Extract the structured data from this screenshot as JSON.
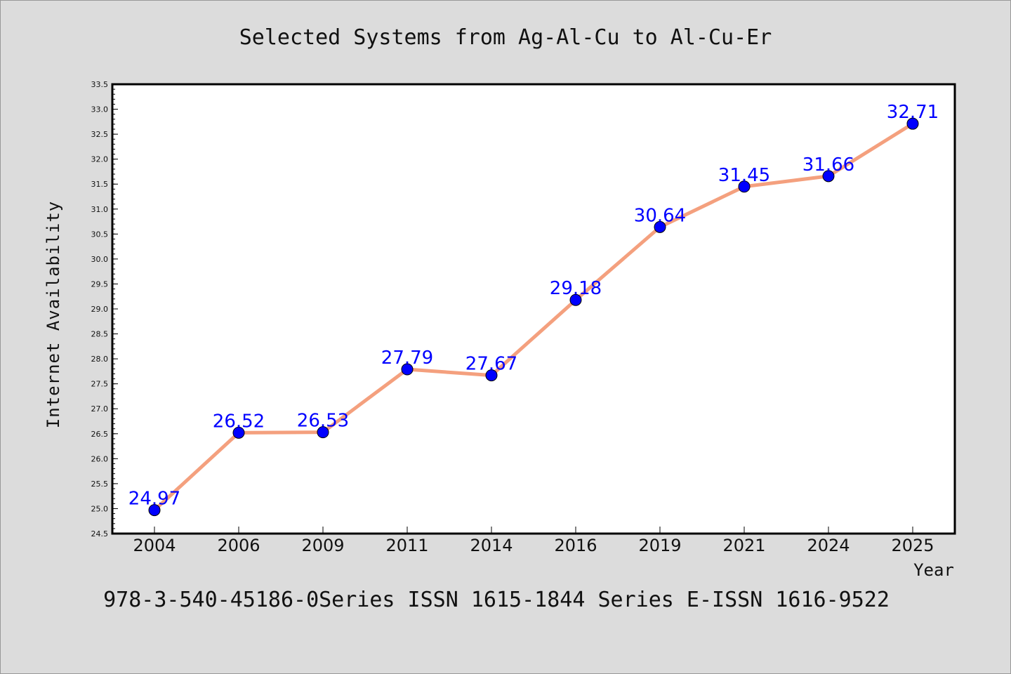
{
  "chart_data": {
    "type": "line",
    "title": "Selected Systems from Ag-Al-Cu to Al-Cu-Er",
    "xlabel": "Year",
    "ylabel": "Internet Availability",
    "categories": [
      "2004",
      "2006",
      "2009",
      "2011",
      "2014",
      "2016",
      "2019",
      "2021",
      "2024",
      "2025"
    ],
    "series": [
      {
        "values": [
          24.97,
          26.52,
          26.53,
          27.79,
          27.67,
          29.18,
          30.64,
          31.45,
          31.66,
          32.71
        ],
        "labels": [
          "24.97",
          "26.52",
          "26.53",
          "27.79",
          "27.67",
          "29.18",
          "30.64",
          "31.45",
          "31.66",
          "32.71"
        ],
        "line_color": "#f4a07e",
        "marker_color": "#0000ff"
      }
    ],
    "ylim": [
      24.5,
      33.5
    ],
    "yticks": [
      "24.5",
      "25.0",
      "25.5",
      "26.0",
      "26.5",
      "27.0",
      "27.5",
      "28.0",
      "28.5",
      "29.0",
      "29.5",
      "30.0",
      "30.5",
      "31.0",
      "31.5",
      "32.0",
      "32.5",
      "33.0",
      "33.5"
    ],
    "legend": "none",
    "grid": false
  },
  "footer": "978-3-540-45186-0Series ISSN 1615-1844 Series E-ISSN 1616-9522",
  "colors": {
    "background": "#dcdcdc",
    "plot_background": "#ffffff",
    "line": "#f4a07e",
    "marker": "#0000ff",
    "data_label": "#0000ff"
  }
}
